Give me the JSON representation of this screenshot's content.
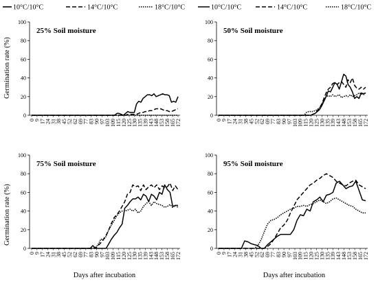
{
  "chart_data": [
    {
      "type": "line",
      "title": "25% Soil moisture",
      "xlabel": "",
      "ylabel": "Germination rate (%)",
      "ylim": [
        0,
        100
      ],
      "yticks": [
        0,
        20,
        40,
        60,
        80,
        100
      ],
      "xticks": [
        "0",
        "9",
        "17",
        "24",
        "31",
        "38",
        "45",
        "52",
        "62",
        "69",
        "77",
        "83",
        "90",
        "97",
        "103",
        "109",
        "115",
        "120",
        "125",
        "130",
        "135",
        "139",
        "143",
        "148",
        "153",
        "158",
        "165",
        "172"
      ],
      "grid": false,
      "legend": "top",
      "legend_labels": [
        "10°C/10°C",
        "14°C/10°C",
        "18°C/10°C"
      ],
      "series": [
        {
          "style": "solid",
          "values": [
            0,
            0,
            0,
            0,
            0,
            0,
            0,
            0,
            0,
            0,
            0,
            0,
            0,
            0,
            0,
            0,
            0,
            0,
            0,
            0,
            0,
            0,
            0,
            0,
            0,
            0,
            0,
            0,
            0,
            0,
            0,
            0,
            0,
            0,
            0,
            0,
            0,
            0,
            0,
            2,
            2,
            1,
            0,
            2,
            4,
            3,
            3,
            3,
            12,
            15,
            14,
            18,
            20,
            22,
            22,
            21,
            23,
            20,
            21,
            22,
            23,
            22,
            22,
            21,
            14,
            15,
            14,
            20
          ]
        },
        {
          "style": "dashed",
          "values": [
            0,
            0,
            0,
            0,
            0,
            0,
            0,
            0,
            0,
            0,
            0,
            0,
            0,
            0,
            0,
            0,
            0,
            0,
            0,
            0,
            0,
            0,
            0,
            0,
            0,
            0,
            0,
            0,
            0,
            0,
            0,
            0,
            0,
            0,
            0,
            0,
            0,
            0,
            0,
            0,
            0,
            0,
            0,
            0,
            1,
            1,
            1,
            1,
            1,
            2,
            3,
            3,
            4,
            4,
            5,
            5,
            6,
            7,
            7,
            7,
            6,
            5,
            5,
            4,
            4,
            5,
            6,
            7
          ]
        },
        {
          "style": "dotted",
          "values": [
            0,
            0,
            0,
            0,
            0,
            0,
            0,
            0,
            0,
            0,
            0,
            0,
            0,
            0,
            0,
            0,
            0,
            0,
            0,
            0,
            0,
            0,
            0,
            0,
            0,
            0,
            0,
            0,
            0,
            0,
            0,
            0,
            0,
            0,
            0,
            0,
            0,
            0,
            0,
            0,
            0,
            0,
            0,
            0,
            0,
            0,
            0,
            0,
            0,
            0,
            0,
            0,
            0,
            0,
            0,
            0,
            0,
            0,
            0,
            0,
            0,
            0,
            0,
            0,
            0,
            0,
            0,
            0
          ]
        }
      ]
    },
    {
      "type": "line",
      "title": "50% Soil moisture",
      "xlabel": "",
      "ylabel": "",
      "ylim": [
        0,
        100
      ],
      "yticks": [
        0,
        20,
        40,
        60,
        80,
        100
      ],
      "xticks": [
        "0",
        "9",
        "17",
        "24",
        "31",
        "38",
        "45",
        "52",
        "62",
        "69",
        "77",
        "83",
        "90",
        "97",
        "103",
        "109",
        "115",
        "120",
        "125",
        "130",
        "135",
        "139",
        "143",
        "148",
        "153",
        "158",
        "165",
        "172"
      ],
      "grid": false,
      "legend": "top",
      "legend_labels": [
        "10°C/10°C",
        "14°C/10°C",
        "18°C/10°C"
      ],
      "series": [
        {
          "style": "solid",
          "values": [
            0,
            0,
            0,
            0,
            0,
            0,
            0,
            0,
            0,
            0,
            0,
            0,
            0,
            0,
            0,
            0,
            0,
            0,
            0,
            0,
            0,
            0,
            0,
            0,
            0,
            0,
            0,
            0,
            0,
            0,
            0,
            0,
            0,
            0,
            0,
            0,
            0,
            0,
            0,
            0,
            0,
            0,
            0,
            1,
            2,
            4,
            6,
            10,
            15,
            20,
            26,
            25,
            30,
            35,
            33,
            28,
            36,
            44,
            42,
            33,
            30,
            25,
            18,
            20,
            18,
            24,
            23,
            24
          ]
        },
        {
          "style": "dashed",
          "values": [
            0,
            0,
            0,
            0,
            0,
            0,
            0,
            0,
            0,
            0,
            0,
            0,
            0,
            0,
            0,
            0,
            0,
            0,
            0,
            0,
            0,
            0,
            0,
            0,
            0,
            0,
            0,
            0,
            0,
            0,
            0,
            0,
            0,
            0,
            0,
            0,
            0,
            0,
            0,
            0,
            0,
            0,
            0,
            1,
            2,
            5,
            8,
            12,
            18,
            24,
            28,
            30,
            34,
            35,
            33,
            35,
            36,
            33,
            30,
            38,
            35,
            40,
            32,
            29,
            28,
            30,
            28,
            30
          ]
        },
        {
          "style": "dotted",
          "values": [
            0,
            0,
            0,
            0,
            0,
            0,
            0,
            0,
            0,
            0,
            0,
            0,
            0,
            0,
            0,
            0,
            0,
            0,
            0,
            0,
            0,
            0,
            0,
            0,
            0,
            0,
            0,
            0,
            0,
            0,
            0,
            0,
            0,
            0,
            0,
            0,
            0,
            0,
            0,
            0,
            3,
            4,
            4,
            4,
            5,
            6,
            8,
            12,
            16,
            20,
            21,
            20,
            22,
            20,
            21,
            22,
            19,
            20,
            21,
            20,
            22,
            20,
            21,
            22,
            24,
            23,
            22,
            24
          ]
        }
      ]
    },
    {
      "type": "line",
      "title": "75% Soil moisture",
      "xlabel": "Days after incubation",
      "ylabel": "Germination rate (%)",
      "ylim": [
        0,
        100
      ],
      "yticks": [
        0,
        20,
        40,
        60,
        80,
        100
      ],
      "xticks": [
        "0",
        "9",
        "17",
        "24",
        "31",
        "38",
        "45",
        "52",
        "62",
        "69",
        "77",
        "83",
        "90",
        "97",
        "103",
        "109",
        "115",
        "120",
        "125",
        "130",
        "135",
        "139",
        "143",
        "148",
        "153",
        "158",
        "165",
        "172"
      ],
      "grid": false,
      "legend": "top",
      "legend_labels": [
        "10°C/10°C",
        "14°C/10°C",
        "18°C/10°C"
      ],
      "series": [
        {
          "style": "solid",
          "values": [
            0,
            0,
            0,
            0,
            0,
            0,
            0,
            0,
            0,
            0,
            0,
            0,
            0,
            0,
            0,
            0,
            0,
            0,
            0,
            0,
            0,
            0,
            0,
            3,
            0,
            0,
            0,
            0,
            0,
            5,
            10,
            14,
            17,
            22,
            26,
            43,
            46,
            50,
            53,
            53,
            55,
            52,
            58,
            56,
            50,
            58,
            56,
            52,
            60,
            58,
            68,
            63,
            60,
            45,
            46,
            46
          ]
        },
        {
          "style": "dashed",
          "values": [
            0,
            0,
            0,
            0,
            0,
            0,
            0,
            0,
            0,
            0,
            0,
            0,
            0,
            0,
            0,
            0,
            0,
            0,
            0,
            0,
            0,
            0,
            0,
            0,
            0,
            3,
            6,
            10,
            14,
            20,
            27,
            33,
            36,
            40,
            45,
            50,
            58,
            60,
            68,
            66,
            67,
            62,
            68,
            63,
            66,
            68,
            65,
            68,
            63,
            67,
            65,
            66,
            70,
            62,
            67,
            63
          ]
        },
        {
          "style": "dotted",
          "values": [
            0,
            0,
            0,
            0,
            0,
            0,
            0,
            0,
            0,
            0,
            0,
            0,
            0,
            0,
            0,
            0,
            0,
            0,
            0,
            0,
            0,
            0,
            0,
            0,
            1,
            4,
            10,
            9,
            13,
            20,
            25,
            30,
            35,
            38,
            40,
            40,
            41,
            42,
            40,
            42,
            38,
            40,
            45,
            48,
            50,
            46,
            50,
            48,
            47,
            46,
            44,
            45,
            47,
            44,
            46,
            44
          ]
        }
      ]
    },
    {
      "type": "line",
      "title": "95% Soil moisture",
      "xlabel": "Days after incubation",
      "ylabel": "",
      "ylim": [
        0,
        100
      ],
      "yticks": [
        0,
        20,
        40,
        60,
        80,
        100
      ],
      "xticks": [
        "0",
        "9",
        "17",
        "24",
        "31",
        "38",
        "45",
        "52",
        "62",
        "69",
        "77",
        "83",
        "90",
        "97",
        "103",
        "109",
        "115",
        "120",
        "125",
        "130",
        "135",
        "139",
        "143",
        "148",
        "153",
        "158",
        "165",
        "172"
      ],
      "grid": false,
      "legend": "top",
      "legend_labels": [
        "10°C/10°C",
        "14°C/10°C",
        "18°C/10°C"
      ],
      "series": [
        {
          "style": "solid",
          "values": [
            0,
            0,
            0,
            0,
            0,
            0,
            0,
            0,
            8,
            7,
            5,
            4,
            3,
            0,
            0,
            4,
            7,
            10,
            13,
            15,
            15,
            15,
            15,
            20,
            30,
            36,
            35,
            42,
            40,
            50,
            52,
            55,
            50,
            57,
            58,
            60,
            70,
            72,
            68,
            64,
            66,
            67,
            72,
            62,
            52,
            51
          ]
        },
        {
          "style": "dashed",
          "values": [
            0,
            0,
            0,
            0,
            0,
            0,
            0,
            0,
            0,
            0,
            0,
            0,
            0,
            0,
            0,
            2,
            5,
            10,
            16,
            22,
            25,
            30,
            38,
            45,
            52,
            56,
            60,
            64,
            68,
            70,
            73,
            75,
            78,
            80,
            78,
            76,
            72,
            70,
            68,
            67,
            70,
            72,
            73,
            68,
            66,
            64
          ]
        },
        {
          "style": "dotted",
          "values": [
            0,
            0,
            0,
            0,
            0,
            0,
            0,
            0,
            0,
            0,
            0,
            0,
            3,
            9,
            18,
            26,
            30,
            31,
            33,
            36,
            38,
            40,
            42,
            43,
            45,
            45,
            46,
            45,
            47,
            48,
            50,
            52,
            50,
            48,
            50,
            53,
            54,
            52,
            50,
            48,
            46,
            45,
            42,
            40,
            38,
            38
          ]
        }
      ]
    }
  ]
}
